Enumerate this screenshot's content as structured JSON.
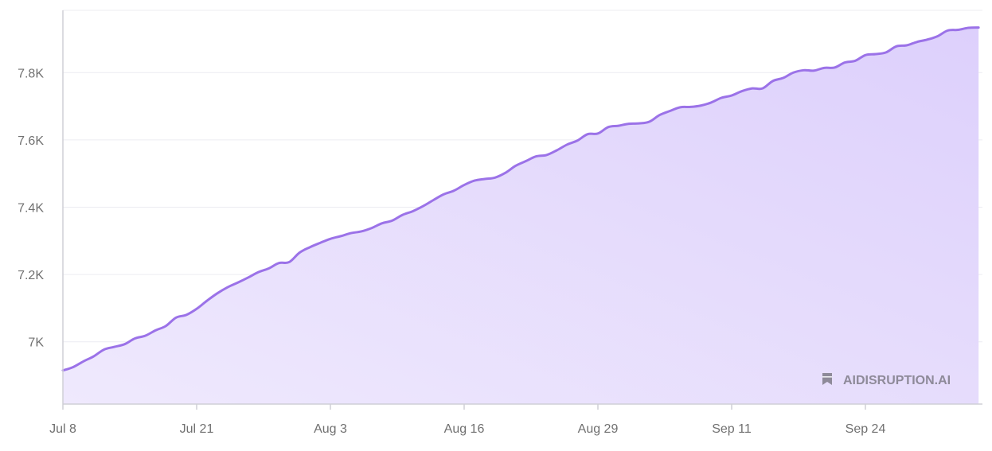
{
  "watermark": {
    "text": "AIDISRUPTION.AI",
    "icon": "flag-icon",
    "color": "#8e8a99"
  },
  "colors": {
    "line": "#9b72e8",
    "fill_top": "#ddd0fc",
    "fill_bottom": "#efe9fd",
    "grid": "#ececf2",
    "axis": "#cfcfd6",
    "tick_text": "#707070"
  },
  "chart_data": {
    "type": "area",
    "title": "",
    "xlabel": "",
    "ylabel": "",
    "x_start": "Jul 8",
    "x_step": "1 day",
    "x_tick_labels": [
      "Jul 8",
      "Jul 21",
      "Aug 3",
      "Aug 16",
      "Aug 29",
      "Sep 11",
      "Sep 24"
    ],
    "y_tick_labels": [
      "7K",
      "7.2K",
      "7.4K",
      "7.6K",
      "7.8K"
    ],
    "y_ticks": [
      7000,
      7200,
      7400,
      7600,
      7800
    ],
    "ylim": [
      6815,
      7985
    ],
    "grid": true,
    "legend": "none",
    "series": [
      {
        "values": [
          6915,
          6925,
          6942,
          6957,
          6977,
          6985,
          6993,
          7010,
          7018,
          7034,
          7047,
          7072,
          7080,
          7098,
          7122,
          7144,
          7162,
          7176,
          7191,
          7207,
          7218,
          7234,
          7237,
          7265,
          7281,
          7294,
          7306,
          7314,
          7323,
          7328,
          7338,
          7352,
          7360,
          7377,
          7388,
          7403,
          7421,
          7438,
          7449,
          7466,
          7479,
          7484,
          7488,
          7502,
          7523,
          7537,
          7551,
          7555,
          7569,
          7586,
          7598,
          7617,
          7619,
          7638,
          7642,
          7648,
          7649,
          7654,
          7674,
          7686,
          7697,
          7698,
          7702,
          7711,
          7725,
          7732,
          7745,
          7753,
          7753,
          7775,
          7784,
          7800,
          7807,
          7806,
          7814,
          7815,
          7830,
          7835,
          7852,
          7855,
          7860,
          7878,
          7881,
          7891,
          7898,
          7908,
          7925,
          7927,
          7933,
          7934
        ]
      }
    ]
  }
}
